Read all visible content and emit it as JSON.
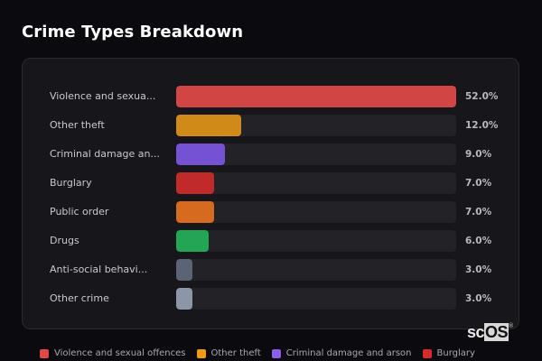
{
  "header": {
    "title": "Crime Types Breakdown"
  },
  "chart_data": {
    "type": "bar",
    "orientation": "horizontal",
    "title": "Crime Types Breakdown",
    "xlabel": "",
    "ylabel": "",
    "xlim": [
      0,
      52
    ],
    "grid": false,
    "legend_position": "bottom",
    "categories": [
      "Violence and sexual offences",
      "Other theft",
      "Criminal damage and arson",
      "Burglary",
      "Public order",
      "Drugs",
      "Anti-social behaviour",
      "Other crime"
    ],
    "display_labels": [
      "Violence and sexua...",
      "Other theft",
      "Criminal damage an...",
      "Burglary",
      "Public order",
      "Drugs",
      "Anti-social behavi...",
      "Other crime"
    ],
    "values": [
      52.0,
      12.0,
      9.0,
      7.0,
      7.0,
      6.0,
      3.0,
      3.0
    ],
    "value_labels": [
      "52.0%",
      "12.0%",
      "9.0%",
      "7.0%",
      "7.0%",
      "6.0%",
      "3.0%",
      "3.0%"
    ],
    "colors": [
      "#d24545",
      "#d08a18",
      "#7452d2",
      "#c02a2a",
      "#d66a1e",
      "#23a556",
      "#5b6475",
      "#8b96a6"
    ],
    "legend": [
      {
        "label": "Violence and sexual offences",
        "color": "#e04848"
      },
      {
        "label": "Other theft",
        "color": "#f09a18"
      },
      {
        "label": "Criminal damage and arson",
        "color": "#8a5ef0"
      },
      {
        "label": "Burglary",
        "color": "#d82a2a"
      }
    ]
  },
  "brand": {
    "prefix": "sc",
    "boxed": "OS",
    "mark": "®"
  }
}
